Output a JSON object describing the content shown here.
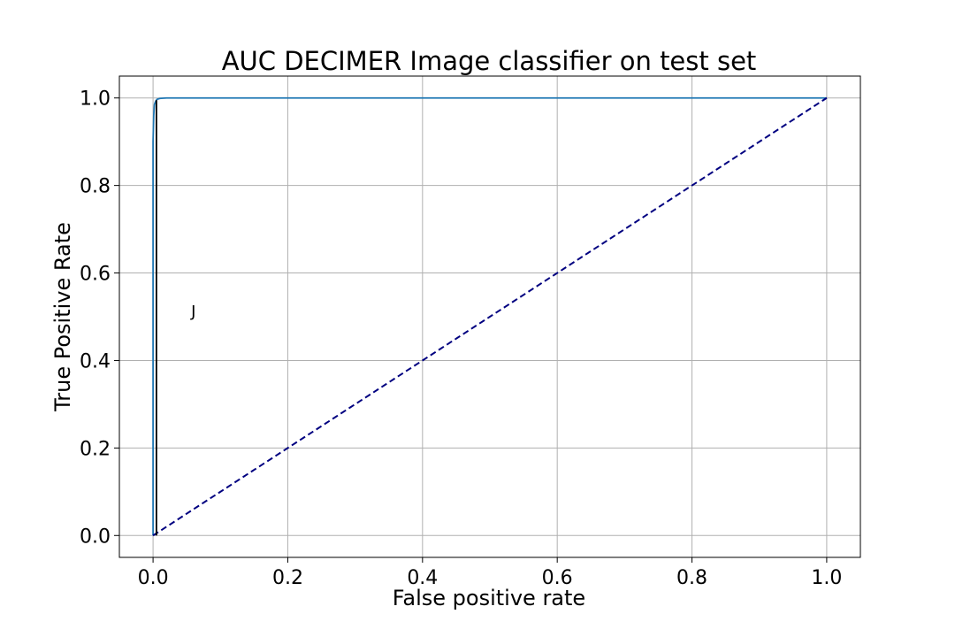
{
  "chart_data": {
    "type": "line",
    "title": "AUC DECIMER Image classifier on test set",
    "xlabel": "False positive rate",
    "ylabel": "True Positive Rate",
    "xlim": [
      -0.05,
      1.05
    ],
    "ylim": [
      -0.05,
      1.05
    ],
    "xticks": [
      "0.0",
      "0.2",
      "0.4",
      "0.6",
      "0.8",
      "1.0"
    ],
    "yticks": [
      "0.0",
      "0.2",
      "0.4",
      "0.6",
      "0.8",
      "1.0"
    ],
    "grid": true,
    "series": [
      {
        "color": "#1f77b4",
        "style": "solid",
        "x": [
          0.0,
          0.0,
          0.001,
          0.002,
          0.004,
          0.006,
          0.01,
          0.02,
          1.0
        ],
        "y": [
          0.0,
          0.9,
          0.96,
          0.985,
          0.993,
          0.997,
          0.999,
          1.0,
          1.0
        ]
      },
      {
        "color": "#000080",
        "style": "dashed",
        "x": [
          0.0,
          1.0
        ],
        "y": [
          0.0,
          1.0
        ]
      },
      {
        "color": "#000000",
        "style": "solid",
        "x": [
          0.005,
          0.005
        ],
        "y": [
          0.0,
          0.995
        ]
      }
    ],
    "annotations": [
      {
        "text": "J",
        "x": 0.06,
        "y": 0.5
      }
    ]
  }
}
